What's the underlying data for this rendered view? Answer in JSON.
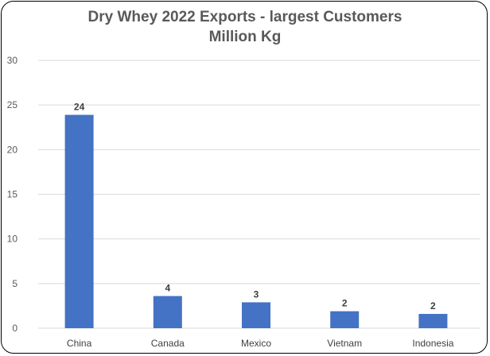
{
  "chart_data": {
    "type": "bar",
    "title": "Dry Whey 2022 Exports - largest Customers",
    "subtitle": "Million Kg",
    "categories": [
      "China",
      "Canada",
      "Mexico",
      "Vietnam",
      "Indonesia"
    ],
    "values": [
      23.9,
      3.6,
      2.9,
      1.9,
      1.6
    ],
    "data_labels": [
      "24",
      "4",
      "3",
      "2",
      "2"
    ],
    "ylim": [
      0,
      30
    ],
    "yticks": [
      "0",
      "5",
      "10",
      "15",
      "20",
      "25",
      "30"
    ],
    "grid": true,
    "bar_color": "#4472C4",
    "grid_color": "#D9D9D9"
  }
}
